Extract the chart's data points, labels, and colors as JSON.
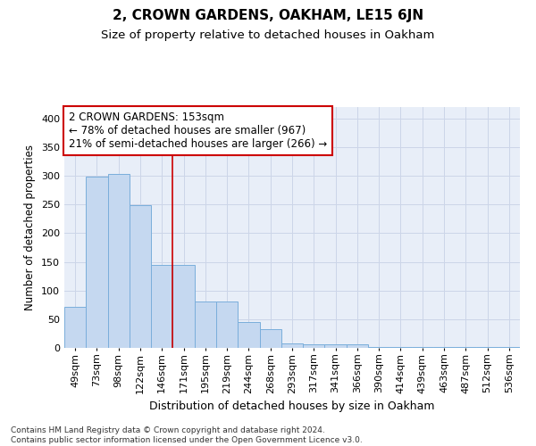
{
  "title1": "2, CROWN GARDENS, OAKHAM, LE15 6JN",
  "title2": "Size of property relative to detached houses in Oakham",
  "xlabel": "Distribution of detached houses by size in Oakham",
  "ylabel": "Number of detached properties",
  "categories": [
    "49sqm",
    "73sqm",
    "98sqm",
    "122sqm",
    "146sqm",
    "171sqm",
    "195sqm",
    "219sqm",
    "244sqm",
    "268sqm",
    "293sqm",
    "317sqm",
    "341sqm",
    "366sqm",
    "390sqm",
    "414sqm",
    "439sqm",
    "463sqm",
    "487sqm",
    "512sqm",
    "536sqm"
  ],
  "values": [
    72,
    298,
    304,
    249,
    145,
    145,
    81,
    81,
    45,
    33,
    8,
    6,
    6,
    6,
    2,
    2,
    2,
    2,
    2,
    2,
    2
  ],
  "bar_color": "#c5d8f0",
  "bar_edge_color": "#7aaedb",
  "vline_x": 4.5,
  "vline_color": "#cc0000",
  "annotation_text": "2 CROWN GARDENS: 153sqm\n← 78% of detached houses are smaller (967)\n21% of semi-detached houses are larger (266) →",
  "annotation_box_color": "#ffffff",
  "annotation_box_edgecolor": "#cc0000",
  "ylim": [
    0,
    420
  ],
  "yticks": [
    0,
    50,
    100,
    150,
    200,
    250,
    300,
    350,
    400
  ],
  "grid_color": "#ccd5e8",
  "background_color": "#e8eef8",
  "footnote": "Contains HM Land Registry data © Crown copyright and database right 2024.\nContains public sector information licensed under the Open Government Licence v3.0.",
  "title1_fontsize": 11,
  "title2_fontsize": 9.5,
  "xlabel_fontsize": 9,
  "ylabel_fontsize": 8.5,
  "tick_fontsize": 8,
  "annot_fontsize": 8.5,
  "footnote_fontsize": 6.5
}
